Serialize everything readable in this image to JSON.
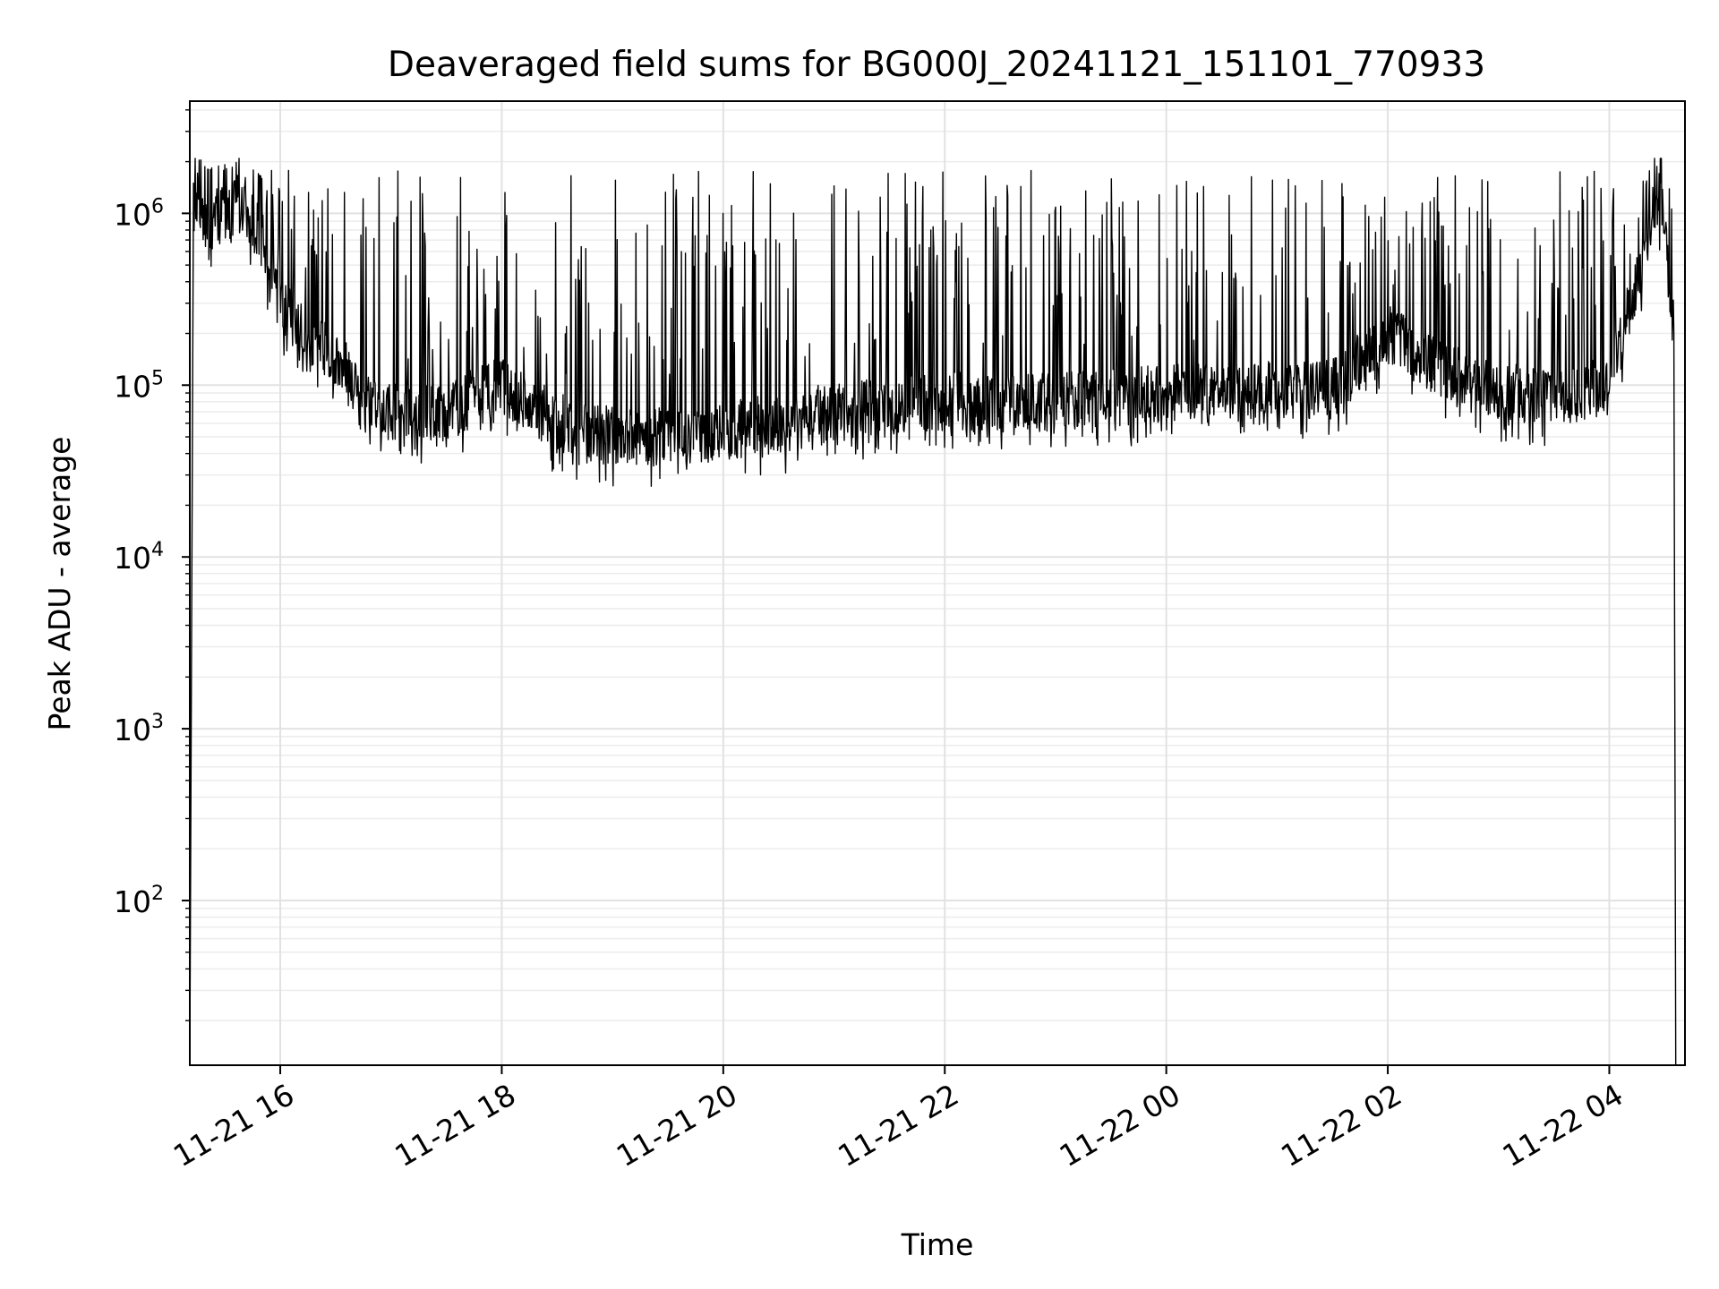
{
  "chart_data": {
    "type": "line",
    "title": "Deaveraged field sums for BG000J_20241121_151101_770933",
    "xlabel": "Time",
    "ylabel": "Peak ADU - average",
    "yscale": "log",
    "x_ticks": [
      "11-21 16",
      "11-21 18",
      "11-21 20",
      "11-21 22",
      "11-22 00",
      "11-22 02",
      "11-22 04"
    ],
    "y_ticks": [
      {
        "base": "10",
        "exp": "2",
        "value": 100
      },
      {
        "base": "10",
        "exp": "3",
        "value": 1000
      },
      {
        "base": "10",
        "exp": "4",
        "value": 10000
      },
      {
        "base": "10",
        "exp": "5",
        "value": 100000
      },
      {
        "base": "10",
        "exp": "6",
        "value": 1000000
      }
    ],
    "x_range": [
      "2024-11-21 15:11",
      "2024-11-22 04:41"
    ],
    "ylim": [
      11,
      4500000
    ],
    "grid": true,
    "line_color": "#000000",
    "series": [
      {
        "x": [
          "2024-11-21 15:11",
          "2024-11-21 15:13",
          "2024-11-21 15:15",
          "2024-11-21 15:20",
          "2024-11-21 15:30",
          "2024-11-21 15:40",
          "2024-11-21 15:50",
          "2024-11-21 16:00",
          "2024-11-21 16:15",
          "2024-11-21 16:30",
          "2024-11-21 16:45",
          "2024-11-21 17:00",
          "2024-11-21 17:30",
          "2024-11-21 18:00",
          "2024-11-21 18:30",
          "2024-11-21 19:00",
          "2024-11-21 19:30",
          "2024-11-21 20:00",
          "2024-11-21 20:30",
          "2024-11-21 21:00",
          "2024-11-21 21:30",
          "2024-11-21 22:00",
          "2024-11-21 22:30",
          "2024-11-21 23:00",
          "2024-11-21 23:30",
          "2024-11-22 00:00",
          "2024-11-22 00:30",
          "2024-11-22 01:00",
          "2024-11-22 01:30",
          "2024-11-22 02:00",
          "2024-11-22 02:30",
          "2024-11-22 03:00",
          "2024-11-22 03:30",
          "2024-11-22 04:00",
          "2024-11-22 04:15",
          "2024-11-22 04:25",
          "2024-11-22 04:30",
          "2024-11-22 04:35",
          "2024-11-22 04:36"
        ],
        "y": [
          11,
          1500000,
          1200000,
          900000,
          1000000,
          1200000,
          700000,
          300000,
          200000,
          150000,
          80000,
          70000,
          70000,
          100000,
          60000,
          50000,
          50000,
          55000,
          60000,
          70000,
          75000,
          80000,
          80000,
          80000,
          85000,
          90000,
          90000,
          95000,
          95000,
          200000,
          120000,
          90000,
          85000,
          100000,
          400000,
          1300000,
          1000000,
          200000,
          11
        ]
      }
    ]
  }
}
